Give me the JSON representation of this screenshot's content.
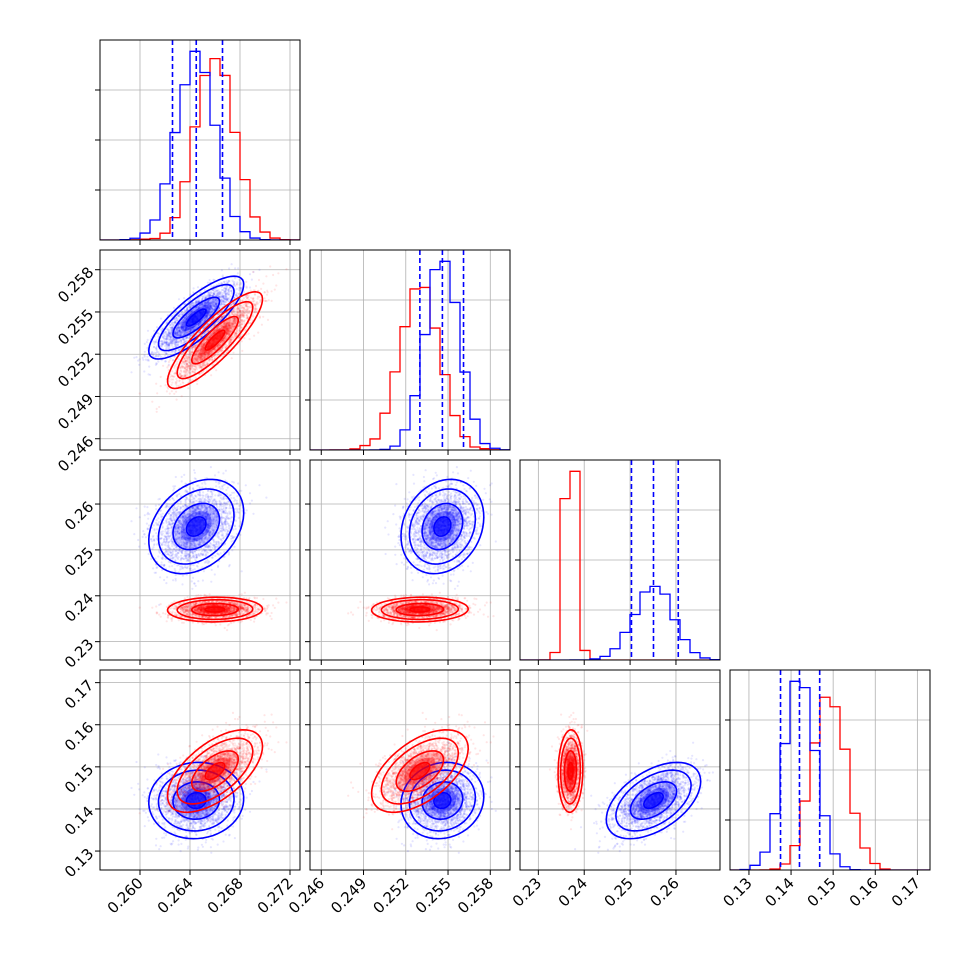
{
  "chart_data": {
    "type": "corner",
    "grid": true,
    "series": [
      {
        "color": "#0000ff"
      },
      {
        "color": "#ff0000"
      }
    ],
    "params": [
      {
        "range": [
          0.2568,
          0.2728
        ],
        "ticks": [
          "0.260",
          "0.264",
          "0.268",
          "0.272"
        ],
        "tick_values": [
          0.26,
          0.264,
          0.268,
          0.272
        ]
      },
      {
        "range": [
          0.2452,
          0.2594
        ],
        "ticks": [
          "0.246",
          "0.249",
          "0.252",
          "0.255",
          "0.258"
        ],
        "tick_values": [
          0.246,
          0.249,
          0.252,
          0.255,
          0.258
        ]
      },
      {
        "range": [
          0.226,
          0.2696
        ],
        "ticks": [
          "0.23",
          "0.24",
          "0.25",
          "0.26"
        ],
        "tick_values": [
          0.23,
          0.24,
          0.25,
          0.26
        ]
      },
      {
        "range": [
          0.1255,
          0.173
        ],
        "ticks": [
          "0.13",
          "0.14",
          "0.15",
          "0.16",
          "0.17"
        ],
        "tick_values": [
          0.13,
          0.14,
          0.15,
          0.16,
          0.17
        ]
      }
    ],
    "blue_quantiles": [
      [
        0.2626,
        0.2645,
        0.2666
      ],
      [
        0.253,
        0.2546,
        0.2561
      ],
      [
        0.2503,
        0.2551,
        0.2605
      ],
      [
        0.1375,
        0.142,
        0.1468
      ]
    ],
    "distributions": [
      {
        "series": 0,
        "mean": [
          0.2645,
          0.2546,
          0.2551,
          0.142
        ],
        "std": [
          0.00155,
          0.0012,
          0.0042,
          0.0037
        ],
        "corr": [
          [
            0,
            1,
            0.8
          ],
          [
            0,
            2,
            0.3
          ],
          [
            0,
            3,
            0.05
          ],
          [
            1,
            2,
            0.2
          ],
          [
            1,
            3,
            0.1
          ],
          [
            2,
            3,
            0.5
          ]
        ]
      },
      {
        "series": 1,
        "mean": [
          0.266,
          0.253,
          0.237,
          0.149
        ],
        "std": [
          0.00155,
          0.0014,
          0.0011,
          0.004
        ],
        "corr": [
          [
            0,
            1,
            0.85
          ],
          [
            0,
            2,
            0.05
          ],
          [
            0,
            3,
            0.6
          ],
          [
            1,
            2,
            0.05
          ],
          [
            1,
            3,
            0.55
          ],
          [
            2,
            3,
            0.05
          ]
        ]
      }
    ]
  }
}
